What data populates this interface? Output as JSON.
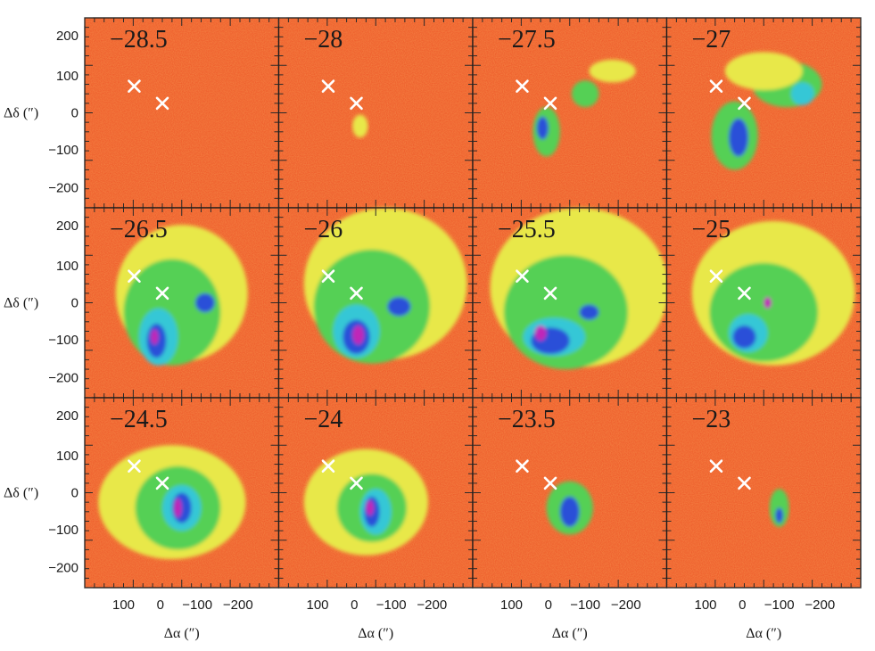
{
  "panels": [
    {
      "label": "−28.5"
    },
    {
      "label": "−28"
    },
    {
      "label": "−27.5"
    },
    {
      "label": "−27"
    },
    {
      "label": "−26.5"
    },
    {
      "label": "−26"
    },
    {
      "label": "−25.5"
    },
    {
      "label": "−25"
    },
    {
      "label": "−24.5"
    },
    {
      "label": "−24"
    },
    {
      "label": "−23.5"
    },
    {
      "label": "−23"
    }
  ],
  "y_axis": {
    "label": "Δδ (″)",
    "ticks": [
      "200",
      "100",
      "0",
      "−100",
      "−200"
    ]
  },
  "x_axis": {
    "label": "Δα (″)",
    "ticks": [
      "100",
      "0",
      "−100",
      "−200"
    ]
  },
  "colors": {
    "background": "#ee5a2a",
    "low": "#f39a2e",
    "mid_yellow": "#e8e84a",
    "green": "#55d055",
    "cyan": "#35c7d6",
    "blue": "#2a4fd8",
    "magenta": "#c025b8",
    "marker": "#ffffff"
  },
  "markers": [
    "x-marker-offset",
    "x-marker-center"
  ]
}
